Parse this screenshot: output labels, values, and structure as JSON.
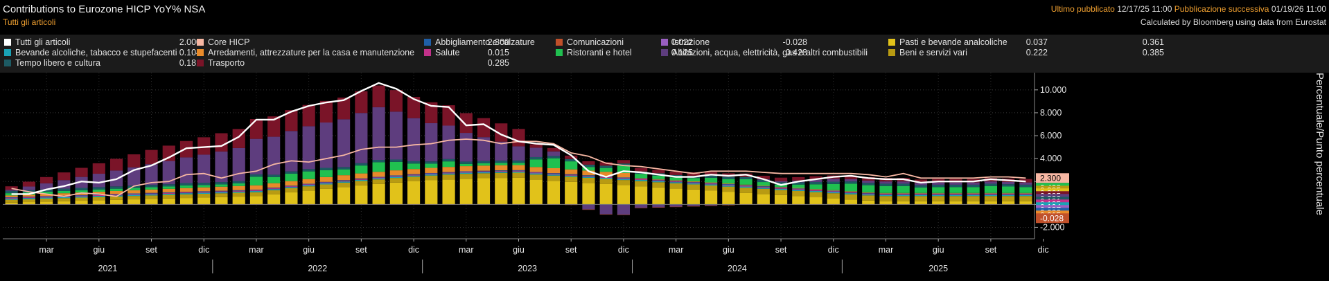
{
  "header": {
    "title": "Contributions to Eurozone HICP YoY% NSA",
    "subtitle": "Tutti gli articoli",
    "last_published_label": "Ultimo pubblicato",
    "last_published_value": "12/17/25 11:00",
    "next_publication_label": "Pubblicazione successiva",
    "next_publication_value": "01/19/26 11:00",
    "credit": "Calculated by Bloomberg using data from Eurostat"
  },
  "legend": [
    {
      "label": "Tutti gli articoli",
      "value": "2.000",
      "color": "#ffffff"
    },
    {
      "label": "Core HICP",
      "value": "2.300",
      "color": "#f7b7a3"
    },
    {
      "label": "Abbigliamento e calzature",
      "value": "0.022",
      "color": "#1f5fa8"
    },
    {
      "label": "Comunicazioni",
      "value": "-0.028",
      "color": "#c0502a"
    },
    {
      "label": "Istruzione",
      "value": "0.037",
      "color": "#9a5fc2"
    },
    {
      "label": "Pasti e bevande analcoliche",
      "value": "0.361",
      "color": "#e1c21a"
    },
    {
      "label": "Bevande alcoliche, tabacco e stupefacenti",
      "value": "0.104",
      "color": "#1aa2b5"
    },
    {
      "label": "Arredamenti, attrezzature per la casa e manutenzione",
      "value": "0.015",
      "color": "#e88a2a"
    },
    {
      "label": "Salute",
      "value": "0.125",
      "color": "#c2318a"
    },
    {
      "label": "Ristoranti e hotel",
      "value": "0.428",
      "color": "#20c050"
    },
    {
      "label": "Abitazioni, acqua, elettricità, gas e altri combustibili",
      "value": "0.222",
      "color": "#5e3d7e"
    },
    {
      "label": "Beni e servizi vari",
      "value": "0.385",
      "color": "#b89b12"
    },
    {
      "label": "Tempo libero e cultura",
      "value": "0.181",
      "color": "#1d5a63"
    },
    {
      "label": "Trasporto",
      "value": "0.285",
      "color": "#7a1428"
    }
  ],
  "chart_data": {
    "type": "bar",
    "stacked": true,
    "yaxis_label": "Percentuale/Punto percentuale",
    "ylim": [
      -3.0,
      11.5
    ],
    "yticks": [
      -2,
      0,
      2,
      4,
      6,
      8,
      10
    ],
    "ytick_labels": [
      "-2.000",
      "",
      "",
      "4.000",
      "6.000",
      "8.000",
      "10.000"
    ],
    "x_month_ticks": [
      "mar",
      "giu",
      "set",
      "dic",
      "mar",
      "giu",
      "set",
      "dic",
      "mar",
      "giu",
      "set",
      "dic",
      "mar",
      "giu",
      "set",
      "dic",
      "mar",
      "giu",
      "set",
      "dic"
    ],
    "x_year_labels": [
      "2021",
      "2022",
      "2023",
      "2024",
      "2025"
    ],
    "right_value_labels": [
      "2.300",
      "0.428",
      "0.385",
      "0.361",
      "0.285",
      "0.222",
      "0.181",
      "0.125",
      "0.104",
      "0.037",
      "0.022",
      "0.015",
      "-0.028"
    ],
    "months": [
      "2021-01",
      "2021-02",
      "2021-03",
      "2021-04",
      "2021-05",
      "2021-06",
      "2021-07",
      "2021-08",
      "2021-09",
      "2021-10",
      "2021-11",
      "2021-12",
      "2022-01",
      "2022-02",
      "2022-03",
      "2022-04",
      "2022-05",
      "2022-06",
      "2022-07",
      "2022-08",
      "2022-09",
      "2022-10",
      "2022-11",
      "2022-12",
      "2023-01",
      "2023-02",
      "2023-03",
      "2023-04",
      "2023-05",
      "2023-06",
      "2023-07",
      "2023-08",
      "2023-09",
      "2023-10",
      "2023-11",
      "2023-12",
      "2024-01",
      "2024-02",
      "2024-03",
      "2024-04",
      "2024-05",
      "2024-06",
      "2024-07",
      "2024-08",
      "2024-09",
      "2024-10",
      "2024-11",
      "2024-12",
      "2025-01",
      "2025-02",
      "2025-03",
      "2025-04",
      "2025-05",
      "2025-06",
      "2025-07",
      "2025-08",
      "2025-09",
      "2025-10",
      "2025-11"
    ],
    "headline": [
      0.9,
      0.9,
      1.3,
      1.6,
      2.0,
      1.9,
      2.2,
      3.0,
      3.4,
      4.1,
      4.9,
      5.0,
      5.1,
      5.9,
      7.4,
      7.4,
      8.1,
      8.6,
      8.9,
      9.1,
      9.9,
      10.6,
      10.1,
      9.2,
      8.6,
      8.5,
      6.9,
      7.0,
      6.1,
      5.5,
      5.3,
      5.2,
      4.3,
      2.9,
      2.4,
      2.9,
      2.8,
      2.6,
      2.4,
      2.4,
      2.6,
      2.5,
      2.6,
      2.2,
      1.7,
      2.0,
      2.2,
      2.4,
      2.5,
      2.3,
      2.2,
      2.2,
      1.9,
      2.0,
      2.0,
      2.0,
      2.2,
      2.1,
      2.0
    ],
    "core": [
      1.4,
      1.1,
      0.9,
      0.7,
      1.0,
      0.9,
      0.7,
      1.6,
      1.9,
      2.0,
      2.6,
      2.7,
      2.3,
      2.7,
      2.9,
      3.5,
      3.8,
      3.7,
      4.0,
      4.3,
      4.8,
      5.0,
      5.0,
      5.2,
      5.3,
      5.6,
      5.7,
      5.6,
      5.3,
      5.5,
      5.5,
      5.3,
      4.5,
      4.2,
      3.6,
      3.4,
      3.3,
      3.1,
      2.9,
      2.7,
      2.9,
      2.9,
      2.9,
      2.8,
      2.7,
      2.7,
      2.7,
      2.7,
      2.7,
      2.6,
      2.4,
      2.7,
      2.3,
      2.3,
      2.3,
      2.3,
      2.4,
      2.4,
      2.3
    ],
    "components": [
      "Abbigliamento e calzature",
      "Comunicazioni",
      "Istruzione",
      "Pasti e bevande analcoliche",
      "Bevande alcoliche, tabacco e stupefacenti",
      "Arredamenti, attrezzature per la casa e manutenzione",
      "Salute",
      "Ristoranti e hotel",
      "Abitazioni, acqua, elettricità, gas e altri combustibili",
      "Beni e servizi vari",
      "Tempo libero e cultura",
      "Trasporto"
    ]
  }
}
